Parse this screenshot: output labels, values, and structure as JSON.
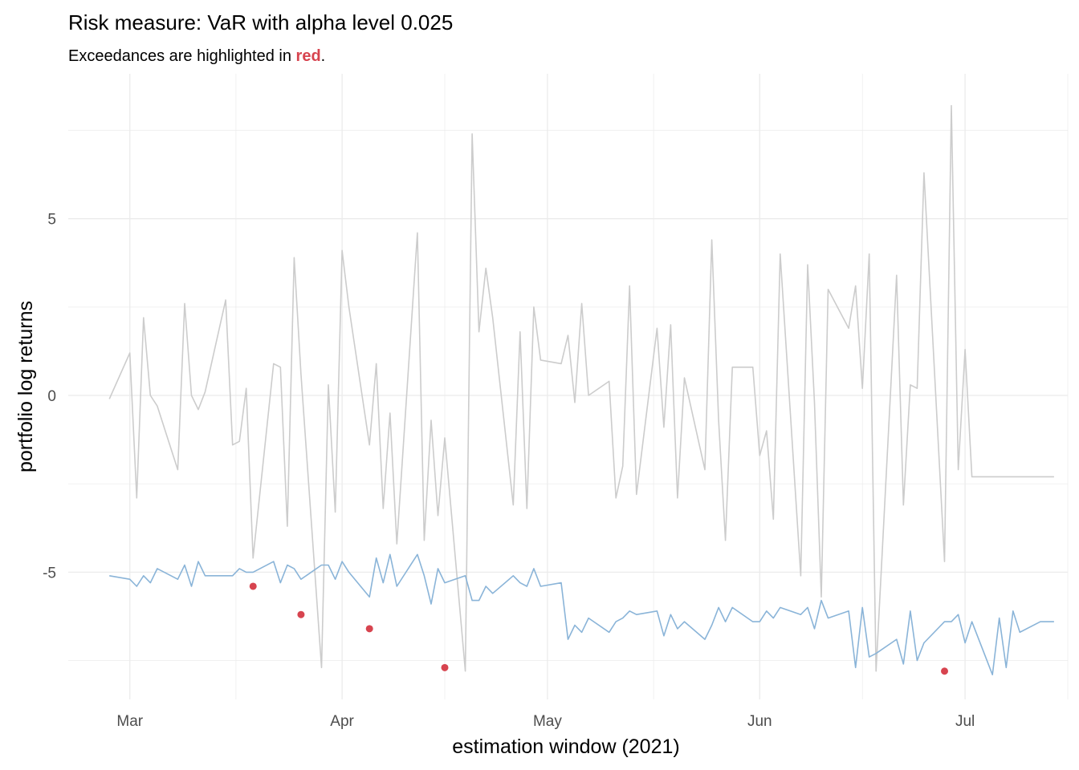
{
  "chart_data": {
    "type": "line",
    "title": "Risk measure: VaR with alpha level 0.025",
    "subtitle": {
      "prefix": "Exceedances are highlighted in ",
      "highlight": "red",
      "suffix": "."
    },
    "xlabel": "estimation window (2021)",
    "ylabel": "portfolio log returns",
    "x_ticks": [
      {
        "date": "2021-03-01",
        "label": "Mar"
      },
      {
        "date": "2021-04-01",
        "label": "Apr"
      },
      {
        "date": "2021-05-01",
        "label": "May"
      },
      {
        "date": "2021-06-01",
        "label": "Jun"
      },
      {
        "date": "2021-07-01",
        "label": "Jul"
      }
    ],
    "y_ticks": [
      {
        "value": -5,
        "label": "-5"
      },
      {
        "value": 0,
        "label": "0"
      },
      {
        "value": 5,
        "label": "5"
      }
    ],
    "xlim": [
      "2021-02-20",
      "2021-07-16"
    ],
    "ylim": [
      -8.6,
      9.1
    ],
    "grid": true,
    "colors": {
      "returns": "#cccccc",
      "var": "#8ab4d8",
      "exceedance": "#d7444f",
      "grid": "#ebebeb"
    },
    "series": [
      {
        "key": "returns",
        "x": [
          "2021-02-26",
          "2021-03-01",
          "2021-03-02",
          "2021-03-03",
          "2021-03-04",
          "2021-03-05",
          "2021-03-08",
          "2021-03-09",
          "2021-03-10",
          "2021-03-11",
          "2021-03-12",
          "2021-03-15",
          "2021-03-16",
          "2021-03-17",
          "2021-03-18",
          "2021-03-19",
          "2021-03-22",
          "2021-03-23",
          "2021-03-24",
          "2021-03-25",
          "2021-03-26",
          "2021-03-29",
          "2021-03-30",
          "2021-03-31",
          "2021-04-01",
          "2021-04-02",
          "2021-04-05",
          "2021-04-06",
          "2021-04-07",
          "2021-04-08",
          "2021-04-09",
          "2021-04-12",
          "2021-04-13",
          "2021-04-14",
          "2021-04-15",
          "2021-04-16",
          "2021-04-19",
          "2021-04-20",
          "2021-04-21",
          "2021-04-22",
          "2021-04-23",
          "2021-04-26",
          "2021-04-27",
          "2021-04-28",
          "2021-04-29",
          "2021-04-30",
          "2021-05-03",
          "2021-05-04",
          "2021-05-05",
          "2021-05-06",
          "2021-05-07",
          "2021-05-10",
          "2021-05-11",
          "2021-05-12",
          "2021-05-13",
          "2021-05-14",
          "2021-05-17",
          "2021-05-18",
          "2021-05-19",
          "2021-05-20",
          "2021-05-21",
          "2021-05-24",
          "2021-05-25",
          "2021-05-26",
          "2021-05-27",
          "2021-05-28",
          "2021-05-31",
          "2021-06-01",
          "2021-06-02",
          "2021-06-03",
          "2021-06-04",
          "2021-06-07",
          "2021-06-08",
          "2021-06-09",
          "2021-06-10",
          "2021-06-11",
          "2021-06-14",
          "2021-06-15",
          "2021-06-16",
          "2021-06-17",
          "2021-06-18",
          "2021-06-21",
          "2021-06-22",
          "2021-06-23",
          "2021-06-24",
          "2021-06-25",
          "2021-06-28",
          "2021-06-29",
          "2021-06-30",
          "2021-07-01",
          "2021-07-02",
          "2021-07-05",
          "2021-07-06",
          "2021-07-07",
          "2021-07-08",
          "2021-07-09",
          "2021-07-12",
          "2021-07-13",
          "2021-07-14"
        ],
        "values": [
          -0.1,
          1.2,
          -2.9,
          2.2,
          0.0,
          -0.3,
          -2.1,
          2.6,
          0.0,
          -0.4,
          0.1,
          2.7,
          -1.4,
          -1.3,
          0.2,
          -4.6,
          0.9,
          0.8,
          -3.7,
          3.9,
          0.6,
          -7.7,
          0.3,
          -3.3,
          4.1,
          2.5,
          -1.4,
          0.9,
          -3.2,
          -0.5,
          -4.2,
          4.6,
          -4.1,
          -0.7,
          -3.4,
          -1.2,
          -7.8,
          7.4,
          1.8,
          3.6,
          2.2,
          -3.1,
          1.8,
          -3.2,
          2.5,
          1.0,
          0.9,
          1.7,
          -0.2,
          2.6,
          0.0,
          0.4,
          -2.9,
          -2.0,
          3.1,
          -2.8,
          1.9,
          -0.9,
          2.0,
          -2.9,
          0.5,
          -2.1,
          4.4,
          -0.7,
          -4.1,
          0.8,
          0.8,
          -1.7,
          -1.0,
          -3.5,
          4.0,
          -5.1,
          3.7,
          -0.2,
          -5.7,
          3.0,
          1.9,
          3.1,
          0.2,
          4.0,
          -7.8,
          3.4,
          -3.1,
          0.3,
          0.2,
          6.3,
          -4.7,
          8.2,
          -2.1,
          1.3,
          -2.3,
          -2.3,
          -2.3,
          -2.3,
          -2.3,
          -2.3,
          -2.3,
          -2.3,
          -2.3
        ]
      },
      {
        "key": "var",
        "x": [
          "2021-02-26",
          "2021-03-01",
          "2021-03-02",
          "2021-03-03",
          "2021-03-04",
          "2021-03-05",
          "2021-03-08",
          "2021-03-09",
          "2021-03-10",
          "2021-03-11",
          "2021-03-12",
          "2021-03-15",
          "2021-03-16",
          "2021-03-17",
          "2021-03-18",
          "2021-03-19",
          "2021-03-22",
          "2021-03-23",
          "2021-03-24",
          "2021-03-25",
          "2021-03-26",
          "2021-03-29",
          "2021-03-30",
          "2021-03-31",
          "2021-04-01",
          "2021-04-02",
          "2021-04-05",
          "2021-04-06",
          "2021-04-07",
          "2021-04-08",
          "2021-04-09",
          "2021-04-12",
          "2021-04-13",
          "2021-04-14",
          "2021-04-15",
          "2021-04-16",
          "2021-04-19",
          "2021-04-20",
          "2021-04-21",
          "2021-04-22",
          "2021-04-23",
          "2021-04-26",
          "2021-04-27",
          "2021-04-28",
          "2021-04-29",
          "2021-04-30",
          "2021-05-03",
          "2021-05-04",
          "2021-05-05",
          "2021-05-06",
          "2021-05-07",
          "2021-05-10",
          "2021-05-11",
          "2021-05-12",
          "2021-05-13",
          "2021-05-14",
          "2021-05-17",
          "2021-05-18",
          "2021-05-19",
          "2021-05-20",
          "2021-05-21",
          "2021-05-24",
          "2021-05-25",
          "2021-05-26",
          "2021-05-27",
          "2021-05-28",
          "2021-05-31",
          "2021-06-01",
          "2021-06-02",
          "2021-06-03",
          "2021-06-04",
          "2021-06-07",
          "2021-06-08",
          "2021-06-09",
          "2021-06-10",
          "2021-06-11",
          "2021-06-14",
          "2021-06-15",
          "2021-06-16",
          "2021-06-17",
          "2021-06-18",
          "2021-06-21",
          "2021-06-22",
          "2021-06-23",
          "2021-06-24",
          "2021-06-25",
          "2021-06-28",
          "2021-06-29",
          "2021-06-30",
          "2021-07-01",
          "2021-07-02",
          "2021-07-05",
          "2021-07-06",
          "2021-07-07",
          "2021-07-08",
          "2021-07-09",
          "2021-07-12",
          "2021-07-13",
          "2021-07-14"
        ],
        "values": [
          -5.1,
          -5.2,
          -5.4,
          -5.1,
          -5.3,
          -4.9,
          -5.2,
          -4.8,
          -5.4,
          -4.7,
          -5.1,
          -5.1,
          -5.1,
          -4.9,
          -5.0,
          -5.0,
          -4.7,
          -5.3,
          -4.8,
          -4.9,
          -5.2,
          -4.8,
          -4.8,
          -5.2,
          -4.7,
          -5.0,
          -5.7,
          -4.6,
          -5.3,
          -4.5,
          -5.4,
          -4.5,
          -5.1,
          -5.9,
          -4.9,
          -5.3,
          -5.1,
          -5.8,
          -5.8,
          -5.4,
          -5.6,
          -5.1,
          -5.3,
          -5.4,
          -4.9,
          -5.4,
          -5.3,
          -6.9,
          -6.5,
          -6.7,
          -6.3,
          -6.7,
          -6.4,
          -6.3,
          -6.1,
          -6.2,
          -6.1,
          -6.8,
          -6.2,
          -6.6,
          -6.4,
          -6.9,
          -6.5,
          -6.0,
          -6.4,
          -6.0,
          -6.4,
          -6.4,
          -6.1,
          -6.3,
          -6.0,
          -6.2,
          -6.0,
          -6.6,
          -5.8,
          -6.3,
          -6.1,
          -7.7,
          -6.0,
          -7.4,
          -7.3,
          -6.9,
          -7.6,
          -6.1,
          -7.5,
          -7.0,
          -6.4,
          -6.4,
          -6.2,
          -7.0,
          -6.4,
          -7.9,
          -6.3,
          -7.7,
          -6.1,
          -6.7,
          -6.4,
          -6.4,
          -6.4
        ]
      }
    ],
    "exceedances": {
      "x": [
        "2021-03-19",
        "2021-03-26",
        "2021-04-05",
        "2021-04-16",
        "2021-06-28"
      ],
      "values": [
        -5.4,
        -6.2,
        -6.6,
        -7.7,
        -7.8
      ]
    }
  }
}
